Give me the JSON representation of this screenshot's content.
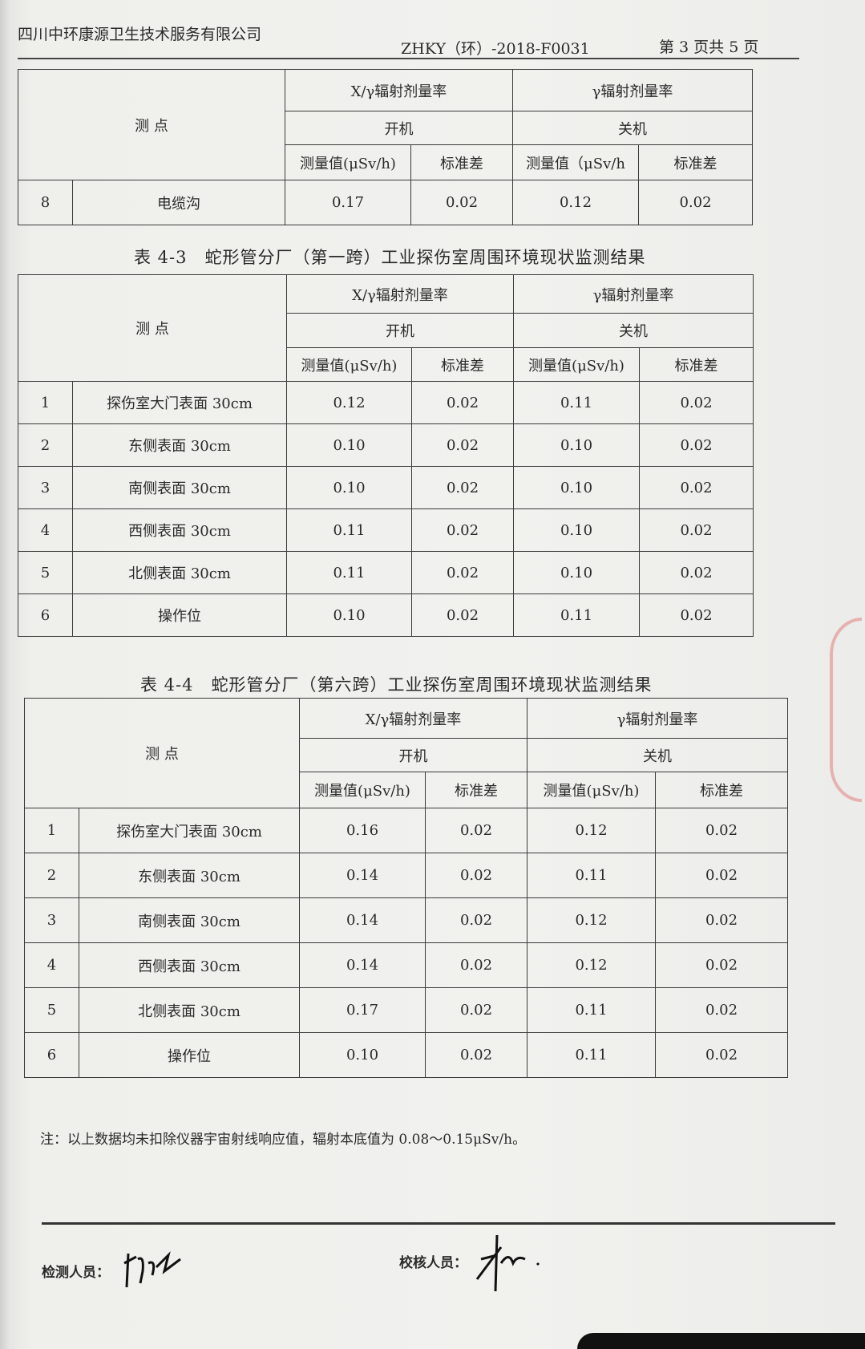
{
  "header": {
    "company": "四川中环康源卫生技术服务有限公司",
    "report_no": "ZHKY（环）-2018-F0031",
    "page": "第 3 页共 5 页"
  },
  "columns": {
    "point": "测 点",
    "xg_rate": "X/γ辐射剂量率",
    "g_rate": "γ辐射剂量率",
    "on": "开机",
    "off": "关机",
    "measured": "测量值(μSv/h)",
    "measured_alt": "测量值（μSv/h",
    "std": "标准差"
  },
  "tables": [
    {
      "title": "",
      "rows": [
        {
          "no": "8",
          "point": "电缆沟",
          "on_val": "0.17",
          "on_std": "0.02",
          "off_val": "0.12",
          "off_std": "0.02"
        }
      ]
    },
    {
      "title": "表 4-3　蛇形管分厂（第一跨）工业探伤室周围环境现状监测结果",
      "rows": [
        {
          "no": "1",
          "point": "探伤室大门表面 30cm",
          "on_val": "0.12",
          "on_std": "0.02",
          "off_val": "0.11",
          "off_std": "0.02"
        },
        {
          "no": "2",
          "point": "东侧表面 30cm",
          "on_val": "0.10",
          "on_std": "0.02",
          "off_val": "0.10",
          "off_std": "0.02"
        },
        {
          "no": "3",
          "point": "南侧表面 30cm",
          "on_val": "0.10",
          "on_std": "0.02",
          "off_val": "0.10",
          "off_std": "0.02"
        },
        {
          "no": "4",
          "point": "西侧表面 30cm",
          "on_val": "0.11",
          "on_std": "0.02",
          "off_val": "0.10",
          "off_std": "0.02"
        },
        {
          "no": "5",
          "point": "北侧表面 30cm",
          "on_val": "0.11",
          "on_std": "0.02",
          "off_val": "0.10",
          "off_std": "0.02"
        },
        {
          "no": "6",
          "point": "操作位",
          "on_val": "0.10",
          "on_std": "0.02",
          "off_val": "0.11",
          "off_std": "0.02"
        }
      ]
    },
    {
      "title": "表 4-4　蛇形管分厂（第六跨）工业探伤室周围环境现状监测结果",
      "rows": [
        {
          "no": "1",
          "point": "探伤室大门表面 30cm",
          "on_val": "0.16",
          "on_std": "0.02",
          "off_val": "0.12",
          "off_std": "0.02"
        },
        {
          "no": "2",
          "point": "东侧表面 30cm",
          "on_val": "0.14",
          "on_std": "0.02",
          "off_val": "0.11",
          "off_std": "0.02"
        },
        {
          "no": "3",
          "point": "南侧表面 30cm",
          "on_val": "0.14",
          "on_std": "0.02",
          "off_val": "0.12",
          "off_std": "0.02"
        },
        {
          "no": "4",
          "point": "西侧表面 30cm",
          "on_val": "0.14",
          "on_std": "0.02",
          "off_val": "0.12",
          "off_std": "0.02"
        },
        {
          "no": "5",
          "point": "北侧表面 30cm",
          "on_val": "0.17",
          "on_std": "0.02",
          "off_val": "0.11",
          "off_std": "0.02"
        },
        {
          "no": "6",
          "point": "操作位",
          "on_val": "0.10",
          "on_std": "0.02",
          "off_val": "0.11",
          "off_std": "0.02"
        }
      ]
    }
  ],
  "note": "注：以上数据均未扣除仪器宇宙射线响应值，辐射本底值为 0.08～0.15μSv/h。",
  "footer": {
    "inspector_label": "检测人员：",
    "reviewer_label": "校核人员："
  },
  "colors": {
    "stamp": "#dc4646",
    "ink": "#2a2a2a"
  }
}
